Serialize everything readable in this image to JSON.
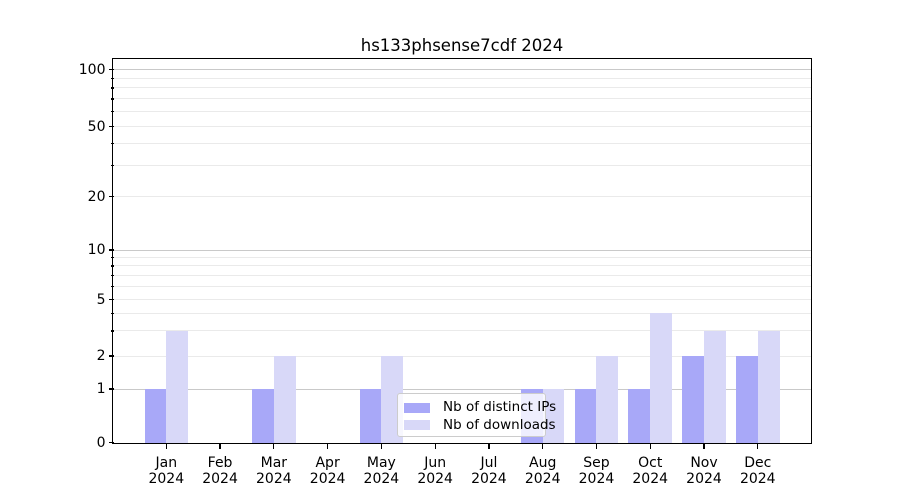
{
  "page": {
    "background_color": "#ffffff",
    "text_color": "#000000"
  },
  "chart_data": {
    "type": "bar",
    "title": "hs133phsense7cdf 2024",
    "categories": [
      "Jan 2024",
      "Feb 2024",
      "Mar 2024",
      "Apr 2024",
      "May 2024",
      "Jun 2024",
      "Jul 2024",
      "Aug 2024",
      "Sep 2024",
      "Oct 2024",
      "Nov 2024",
      "Dec 2024"
    ],
    "x_tick_month_labels": [
      "Jan",
      "Feb",
      "Mar",
      "Apr",
      "May",
      "Jun",
      "Jul",
      "Aug",
      "Sep",
      "Oct",
      "Nov",
      "Dec"
    ],
    "x_tick_year_label": "2024",
    "series": [
      {
        "name": "Nb of distinct IPs",
        "color": "#a8a8f8",
        "values": [
          1,
          0,
          1,
          0,
          1,
          0,
          0,
          1,
          1,
          1,
          2,
          2
        ]
      },
      {
        "name": "Nb of downloads",
        "color": "#d8d8f8",
        "values": [
          3,
          0,
          2,
          0,
          2,
          0,
          0,
          1,
          2,
          4,
          3,
          3
        ]
      }
    ],
    "xlabel": "",
    "ylabel": "",
    "y_axis": {
      "scale": "log-like with zero baseline",
      "tick_values": [
        0,
        1,
        2,
        5,
        10,
        20,
        50,
        100
      ],
      "tick_labels": [
        "0",
        "1",
        "2",
        "5",
        "10",
        "20",
        "50",
        "100"
      ],
      "major_gridline_values": [
        1,
        10,
        100
      ],
      "minor_gridline_values": [
        2,
        5,
        20,
        50,
        3,
        4,
        6,
        7,
        8,
        9,
        30,
        40,
        60,
        70,
        80,
        90
      ]
    },
    "grid": true,
    "legend": {
      "position": "lower center",
      "items": [
        {
          "label": "Nb of distinct IPs",
          "swatch_color": "#a8a8f8"
        },
        {
          "label": "Nb of downloads",
          "swatch_color": "#d8d8f8"
        }
      ]
    },
    "colors": {
      "spine": "#000000",
      "major_grid": "#c9c9c9",
      "minor_grid": "#eaeaea",
      "legend_background": "rgba(255,255,255,0.8)",
      "legend_border": "#cccccc"
    }
  }
}
